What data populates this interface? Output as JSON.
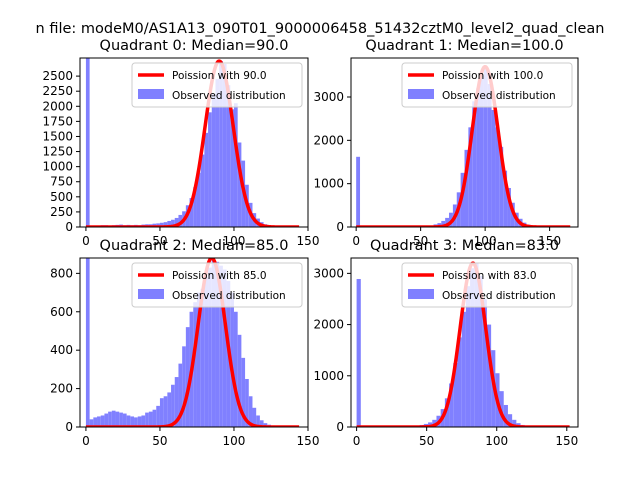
{
  "figure": {
    "suptitle": "n file: modeM0/AS1A13_090T01_9000006458_51432cztM0_level2_quad_clean"
  },
  "chart_data": [
    {
      "type": "bar",
      "title": "Quadrant 0: Median=90.0",
      "xlim": [
        -4,
        150
      ],
      "ylim": [
        0,
        2800
      ],
      "xticks": [
        0,
        50,
        100,
        150
      ],
      "yticks": [
        0,
        250,
        500,
        750,
        1000,
        1250,
        1500,
        1750,
        2000,
        2250,
        2500
      ],
      "legend": [
        "Poission with 90.0",
        "Observed distribution"
      ],
      "legend_position": "upper right",
      "fit": {
        "label": "Poission with 90.0",
        "mean": 90.0,
        "peak": 2750,
        "sigma": 9.5
      },
      "histogram": {
        "label": "Observed distribution",
        "bin_edges": [
          0,
          2.5,
          5,
          7.5,
          10,
          12.5,
          15,
          17.5,
          20,
          22.5,
          25,
          27.5,
          30,
          32.5,
          35,
          37.5,
          40,
          42.5,
          45,
          47.5,
          50,
          52.5,
          55,
          57.5,
          60,
          62.5,
          65,
          67.5,
          70,
          72.5,
          75,
          77.5,
          80,
          82.5,
          85,
          87.5,
          90,
          92.5,
          95,
          97.5,
          100,
          102.5,
          105,
          107.5,
          110,
          112.5,
          115,
          117.5,
          120,
          122.5,
          125,
          127.5,
          130,
          132.5,
          135,
          137.5,
          140,
          142.5
        ],
        "counts": [
          2800,
          20,
          25,
          25,
          30,
          30,
          25,
          30,
          35,
          40,
          30,
          35,
          30,
          35,
          30,
          40,
          45,
          45,
          55,
          60,
          70,
          80,
          100,
          120,
          150,
          200,
          260,
          360,
          480,
          660,
          900,
          1200,
          1560,
          1900,
          2200,
          2450,
          2750,
          2700,
          2350,
          1950,
          2050,
          1400,
          1100,
          700,
          400,
          230,
          140,
          80,
          45,
          30,
          20,
          15,
          10,
          8,
          5,
          3,
          2,
          1
        ]
      }
    },
    {
      "type": "bar",
      "title": "Quadrant 1: Median=100.0",
      "xlim": [
        -4,
        172
      ],
      "ylim": [
        0,
        3900
      ],
      "xticks": [
        0,
        50,
        100,
        150
      ],
      "yticks": [
        0,
        1000,
        2000,
        3000
      ],
      "legend": [
        "Poission with 100.0",
        "Observed distribution"
      ],
      "legend_position": "upper right",
      "fit": {
        "label": "Poission with 100.0",
        "mean": 100.0,
        "peak": 3700,
        "sigma": 10.0
      },
      "histogram": {
        "label": "Observed distribution",
        "bin_edges": [
          0,
          3,
          60,
          63,
          66,
          69,
          72,
          75,
          78,
          81,
          84,
          87,
          90,
          93,
          96,
          99,
          102,
          105,
          108,
          111,
          114,
          117,
          120,
          123,
          126,
          129,
          132,
          135,
          138,
          141,
          144
        ],
        "counts": [
          1620,
          0,
          60,
          90,
          140,
          210,
          330,
          520,
          800,
          1250,
          1780,
          2300,
          2900,
          3200,
          3500,
          3650,
          3300,
          2700,
          2300,
          1850,
          1300,
          900,
          560,
          330,
          190,
          100,
          55,
          25,
          12,
          5
        ]
      }
    },
    {
      "type": "bar",
      "title": "Quadrant 2: Median=85.0",
      "xlim": [
        -4,
        150
      ],
      "ylim": [
        0,
        880
      ],
      "xticks": [
        0,
        50,
        100,
        150
      ],
      "yticks": [
        0,
        200,
        400,
        600,
        800
      ],
      "legend": [
        "Poission with 85.0",
        "Observed distribution"
      ],
      "legend_position": "upper right",
      "fit": {
        "label": "Poission with 85.0",
        "mean": 85.0,
        "peak": 880,
        "sigma": 9.2
      },
      "histogram": {
        "label": "Observed distribution",
        "bin_edges": [
          0,
          2.5,
          5,
          7.5,
          10,
          12.5,
          15,
          17.5,
          20,
          22.5,
          25,
          27.5,
          30,
          32.5,
          35,
          37.5,
          40,
          42.5,
          45,
          47.5,
          50,
          52.5,
          55,
          57.5,
          60,
          62.5,
          65,
          67.5,
          70,
          72.5,
          75,
          77.5,
          80,
          82.5,
          85,
          87.5,
          90,
          92.5,
          95,
          97.5,
          100,
          102.5,
          105,
          107.5,
          110,
          112.5,
          115,
          117.5,
          120,
          122.5,
          125,
          127.5,
          130,
          132.5
        ],
        "counts": [
          880,
          40,
          50,
          55,
          60,
          70,
          80,
          85,
          80,
          75,
          70,
          60,
          55,
          50,
          55,
          60,
          75,
          80,
          90,
          110,
          150,
          160,
          180,
          220,
          260,
          330,
          420,
          520,
          600,
          650,
          700,
          720,
          780,
          830,
          870,
          860,
          840,
          820,
          760,
          700,
          600,
          480,
          360,
          250,
          160,
          100,
          60,
          35,
          20,
          12,
          8,
          5,
          3,
          2
        ]
      }
    },
    {
      "type": "bar",
      "title": "Quadrant 3: Median=83.0",
      "xlim": [
        -4,
        158
      ],
      "ylim": [
        0,
        3300
      ],
      "xticks": [
        0,
        50,
        100,
        150
      ],
      "yticks": [
        0,
        1000,
        2000,
        3000
      ],
      "legend": [
        "Poission with 83.0",
        "Observed distribution"
      ],
      "legend_position": "upper right",
      "fit": {
        "label": "Poission with 83.0",
        "mean": 83.0,
        "peak": 3200,
        "sigma": 9.1
      },
      "histogram": {
        "label": "Observed distribution",
        "bin_edges": [
          0,
          3,
          45,
          48,
          51,
          54,
          57,
          60,
          63,
          66,
          69,
          72,
          75,
          78,
          81,
          84,
          87,
          90,
          93,
          96,
          99,
          102,
          105,
          108,
          111,
          114,
          117,
          120,
          123,
          126
        ],
        "counts": [
          2890,
          0,
          40,
          60,
          90,
          140,
          220,
          350,
          560,
          850,
          1250,
          1750,
          2250,
          2750,
          3100,
          3200,
          2950,
          2500,
          2000,
          1500,
          1050,
          700,
          430,
          250,
          140,
          75,
          40,
          20,
          10
        ]
      }
    }
  ],
  "style": {
    "fit_color": "#ff0000",
    "hist_color": "#8080ff"
  }
}
